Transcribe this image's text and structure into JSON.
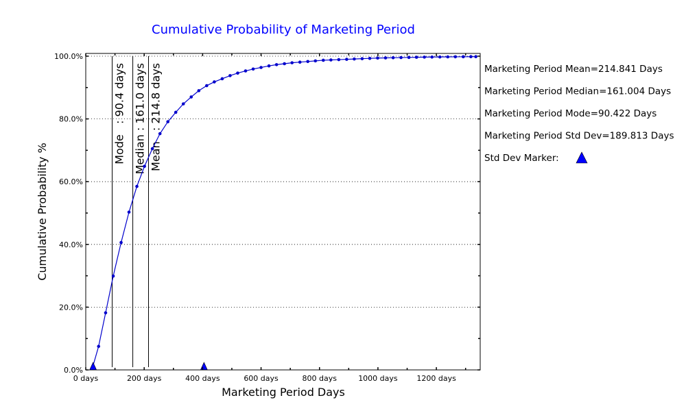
{
  "chart_data": {
    "type": "line",
    "title": "Cumulative Probability of Marketing Period",
    "xlabel": "Marketing Period Days",
    "ylabel": "Cumulative Probability %",
    "xlim": [
      0,
      1350
    ],
    "ylim": [
      0,
      100
    ],
    "x_ticks": [
      0,
      200,
      400,
      600,
      800,
      1000,
      1200
    ],
    "x_tick_labels": [
      "0 days",
      "200 days",
      "400 days",
      "600 days",
      "800 days",
      "1000 days",
      "1200 days"
    ],
    "y_ticks": [
      0,
      20,
      40,
      60,
      80,
      100
    ],
    "y_tick_labels": [
      "0.0%",
      "20.0%",
      "40.0%",
      "60.0%",
      "80.0%",
      "100.0%"
    ],
    "grid": "horizontal-dotted",
    "series": [
      {
        "color": "#0000cc",
        "x": [
          24,
          44,
          68,
          94,
          121,
          148,
          175,
          201,
          228,
          254,
          281,
          308,
          334,
          361,
          387,
          414,
          440,
          467,
          494,
          520,
          547,
          573,
          600,
          627,
          653,
          680,
          706,
          733,
          760,
          786,
          813,
          839,
          866,
          893,
          919,
          946,
          972,
          999,
          1026,
          1052,
          1079,
          1106,
          1132,
          1159,
          1185,
          1212,
          1239,
          1265,
          1292,
          1318,
          1335
        ],
        "y": [
          1,
          7.5,
          18.2,
          29.9,
          40.6,
          50.3,
          58.5,
          64.9,
          70.5,
          75.3,
          79.1,
          82.1,
          84.8,
          87.0,
          89.0,
          90.6,
          91.8,
          92.8,
          93.8,
          94.6,
          95.3,
          95.9,
          96.4,
          96.9,
          97.3,
          97.6,
          97.9,
          98.1,
          98.3,
          98.5,
          98.7,
          98.8,
          98.9,
          99.0,
          99.1,
          99.2,
          99.3,
          99.4,
          99.45,
          99.5,
          99.55,
          99.6,
          99.65,
          99.7,
          99.72,
          99.75,
          99.78,
          99.8,
          99.82,
          99.84,
          99.85
        ]
      }
    ],
    "vlines": [
      {
        "x": 90.422,
        "label": "Mode   : 90.4 days"
      },
      {
        "x": 161.004,
        "label": "Median : 161.0 days"
      },
      {
        "x": 214.841,
        "label": "Mean   : 214.8 days"
      }
    ],
    "std_dev_markers": [
      25.028,
      404.654
    ],
    "legend": [
      "Marketing Period Mean=214.841 Days",
      "Marketing Period Median=161.004 Days",
      "Marketing Period Mode=90.422 Days",
      "Marketing Period Std Dev=189.813 Days",
      "Std Dev Marker:"
    ],
    "colors": {
      "title": "#0000ff",
      "line": "#0000cc",
      "marker": "#0000ff",
      "axis": "#000000"
    }
  }
}
